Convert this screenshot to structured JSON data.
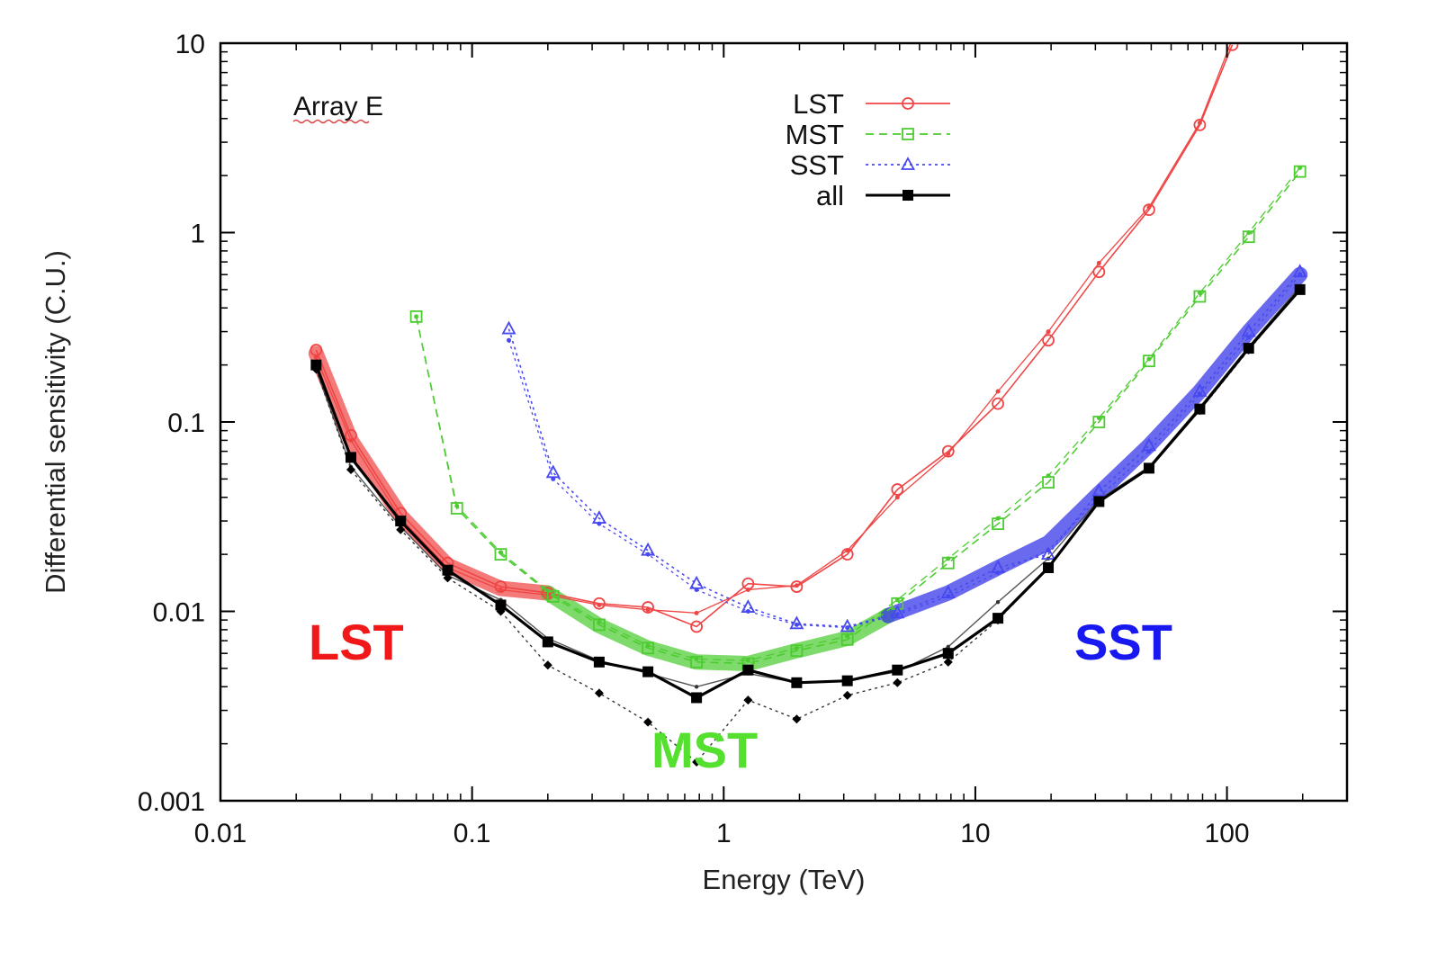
{
  "chart_data": {
    "type": "line",
    "title": "",
    "xlabel": "Energy (TeV)",
    "ylabel": "Differential sensitivity (C.U.)",
    "xscale": "log",
    "yscale": "log",
    "xlim": [
      0.01,
      300
    ],
    "ylim": [
      0.001,
      10
    ],
    "x_ticks": [
      0.01,
      0.1,
      1,
      10,
      100
    ],
    "x_tick_labels": [
      "0.01",
      "0.1",
      "1",
      "10",
      "100"
    ],
    "y_ticks": [
      0.001,
      0.01,
      0.1,
      1,
      10
    ],
    "y_tick_labels": [
      "0.001",
      "0.01",
      "0.1",
      "1",
      "10"
    ],
    "grid": false,
    "legend_position": "top-center",
    "annotation": "Array E",
    "series": [
      {
        "name": "LST",
        "color": "#f04545",
        "marker": "circle",
        "dash": "solid",
        "x": [
          0.024,
          0.033,
          0.052,
          0.08,
          0.13,
          0.2,
          0.32,
          0.5,
          0.78,
          1.25,
          1.95,
          3.1,
          4.9,
          7.8,
          12.3,
          19.5,
          31,
          49,
          78,
          105
        ],
        "y": [
          0.24,
          0.085,
          0.033,
          0.018,
          0.0135,
          0.0125,
          0.011,
          0.0105,
          0.0083,
          0.014,
          0.0135,
          0.02,
          0.044,
          0.07,
          0.125,
          0.27,
          0.62,
          1.32,
          3.7,
          9.8
        ],
        "x2": [
          0.024,
          0.033,
          0.052,
          0.08,
          0.13,
          0.2,
          0.32,
          0.5,
          0.78,
          1.25,
          1.95,
          3.1,
          4.9,
          7.8,
          12.3,
          19.5,
          31,
          49,
          78,
          105
        ],
        "y2": [
          0.22,
          0.08,
          0.031,
          0.017,
          0.013,
          0.0122,
          0.0108,
          0.0102,
          0.0098,
          0.013,
          0.0137,
          0.021,
          0.04,
          0.068,
          0.145,
          0.3,
          0.69,
          1.36,
          3.8,
          10.5
        ]
      },
      {
        "name": "MST",
        "color": "#4ccc30",
        "marker": "square",
        "dash": "dashed",
        "x": [
          0.06,
          0.087,
          0.13,
          0.21,
          0.32,
          0.5,
          0.78,
          1.25,
          1.95,
          3.1,
          4.9,
          7.8,
          12.3,
          19.5,
          31,
          49,
          78,
          122,
          195
        ],
        "y": [
          0.36,
          0.035,
          0.02,
          0.012,
          0.0085,
          0.0064,
          0.0054,
          0.0053,
          0.0062,
          0.0071,
          0.011,
          0.018,
          0.029,
          0.048,
          0.1,
          0.21,
          0.46,
          0.95,
          2.1
        ],
        "x2": [
          0.06,
          0.087,
          0.13,
          0.21,
          0.32,
          0.5,
          0.78,
          1.25,
          1.95,
          3.1,
          4.9,
          7.8,
          12.3,
          19.5,
          31,
          49,
          78,
          122,
          195
        ],
        "y2": [
          0.36,
          0.036,
          0.0205,
          0.0122,
          0.0088,
          0.0066,
          0.0056,
          0.0055,
          0.0064,
          0.0074,
          0.0115,
          0.019,
          0.031,
          0.052,
          0.105,
          0.215,
          0.48,
          1.0,
          2.2
        ]
      },
      {
        "name": "SST",
        "color": "#4848f0",
        "marker": "triangle",
        "dash": "dotted",
        "x": [
          0.14,
          0.21,
          0.32,
          0.5,
          0.78,
          1.25,
          1.95,
          3.1,
          4.9,
          7.8,
          12.3,
          19.5,
          31,
          49,
          78,
          122,
          195
        ],
        "y": [
          0.31,
          0.054,
          0.031,
          0.021,
          0.014,
          0.0105,
          0.0086,
          0.0083,
          0.0098,
          0.0125,
          0.017,
          0.02,
          0.043,
          0.075,
          0.145,
          0.3,
          0.62
        ],
        "x2": [
          0.14,
          0.21,
          0.32,
          0.5,
          0.78,
          1.25,
          1.95,
          3.1,
          4.9,
          7.8,
          12.3,
          19.5,
          31,
          49,
          78,
          122,
          195
        ],
        "y2": [
          0.27,
          0.05,
          0.029,
          0.02,
          0.013,
          0.01,
          0.0085,
          0.0082,
          0.0096,
          0.012,
          0.016,
          0.021,
          0.04,
          0.07,
          0.14,
          0.28,
          0.6
        ]
      },
      {
        "name": "all",
        "color": "#000000",
        "marker": "filled-square",
        "dash": "solid",
        "x": [
          0.024,
          0.033,
          0.052,
          0.08,
          0.13,
          0.2,
          0.32,
          0.5,
          0.78,
          1.25,
          1.95,
          3.1,
          4.9,
          7.8,
          12.3,
          19.5,
          31,
          49,
          78,
          122,
          195
        ],
        "y": [
          0.2,
          0.065,
          0.03,
          0.0165,
          0.0108,
          0.0069,
          0.0054,
          0.0048,
          0.0035,
          0.0049,
          0.0042,
          0.0043,
          0.0049,
          0.006,
          0.0092,
          0.017,
          0.038,
          0.057,
          0.117,
          0.245,
          0.5
        ]
      }
    ],
    "reference_curves": [
      {
        "color": "#555555",
        "dash": "solid",
        "x": [
          0.024,
          0.033,
          0.052,
          0.08,
          0.13,
          0.2,
          0.32,
          0.5,
          0.78,
          1.25,
          1.95,
          3.1,
          4.9,
          7.8,
          12.3,
          19.5,
          31,
          49,
          78,
          122,
          195
        ],
        "y": [
          0.19,
          0.058,
          0.028,
          0.0155,
          0.0115,
          0.0072,
          0.0055,
          0.0047,
          0.004,
          0.0047,
          0.0042,
          0.0043,
          0.0048,
          0.0065,
          0.0112,
          0.019,
          0.039,
          0.058,
          0.12,
          0.25,
          0.52
        ]
      },
      {
        "color": "#333333",
        "dash": "dotted",
        "x": [
          0.024,
          0.033,
          0.052,
          0.08,
          0.13,
          0.2,
          0.32,
          0.5,
          0.78,
          1.25,
          1.95,
          3.1,
          4.9,
          7.8,
          12.3,
          19.5,
          31,
          49,
          78,
          122,
          195
        ],
        "y": [
          0.19,
          0.056,
          0.027,
          0.015,
          0.01,
          0.0052,
          0.0037,
          0.0026,
          0.0016,
          0.0034,
          0.0027,
          0.0036,
          0.0042,
          0.0054,
          0.009,
          0.017,
          0.038,
          0.057,
          0.115,
          0.24,
          0.5
        ]
      }
    ],
    "best_envelope": [
      {
        "color": "#f04545",
        "x": [
          0.024,
          0.033,
          0.052,
          0.08,
          0.13,
          0.2
        ],
        "y": [
          0.23,
          0.08,
          0.032,
          0.0175,
          0.0132,
          0.0125
        ]
      },
      {
        "color": "#4ccc30",
        "x": [
          0.2,
          0.32,
          0.5,
          0.78,
          1.25,
          1.95,
          3.1,
          4.5
        ],
        "y": [
          0.0125,
          0.0084,
          0.0064,
          0.0054,
          0.0053,
          0.0062,
          0.0072,
          0.0095
        ]
      },
      {
        "color": "#3030e8",
        "x": [
          4.5,
          7.8,
          12.3,
          19.5,
          31,
          49,
          78,
          122,
          195
        ],
        "y": [
          0.0095,
          0.0125,
          0.017,
          0.023,
          0.042,
          0.075,
          0.145,
          0.3,
          0.6
        ]
      }
    ],
    "region_labels": [
      {
        "text": "LST",
        "color": "#f01818"
      },
      {
        "text": "MST",
        "color": "#55e030"
      },
      {
        "text": "SST",
        "color": "#1818f0"
      }
    ]
  }
}
